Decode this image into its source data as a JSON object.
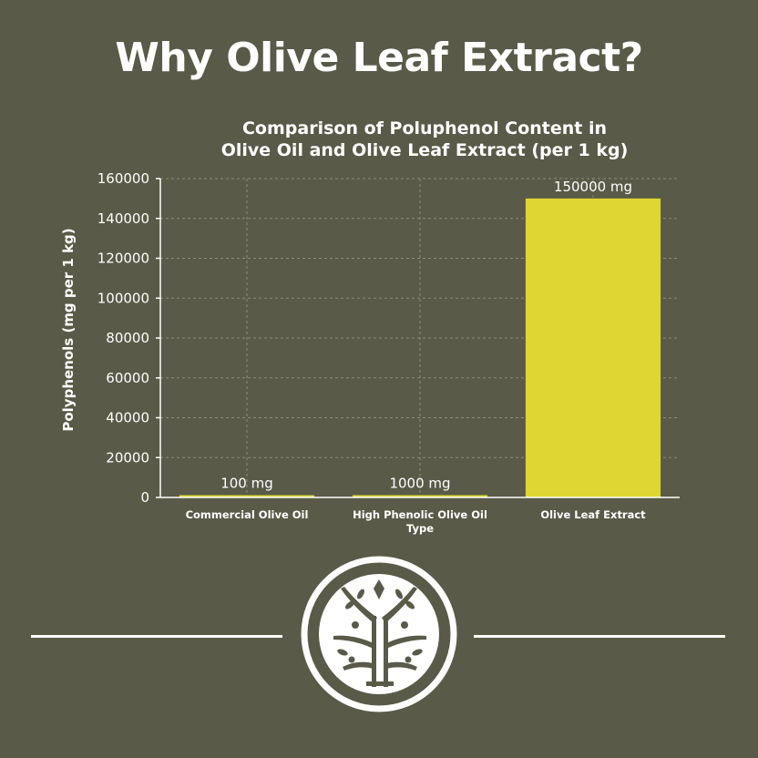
{
  "headline": "Why Olive Leaf Extract?",
  "colors": {
    "background": "#595a48",
    "bar": "#dfd633",
    "text": "#ffffff"
  },
  "logo": {
    "icon": "olive-tree-logo-icon"
  },
  "chart_data": {
    "type": "bar",
    "title_lines": [
      "Comparison of Poluphenol Content in",
      "Olive Oil and Olive Leaf Extract (per 1 kg)"
    ],
    "ylabel": "Polyphenols (mg per 1 kg)",
    "xlabel": "",
    "categories": [
      "Commercial Olive Oil",
      "High Phenolic Olive Oil Type",
      "Olive Leaf Extract"
    ],
    "values": [
      100,
      1000,
      150000
    ],
    "data_labels": [
      "100 mg",
      "1000 mg",
      "150000 mg"
    ],
    "ylim": [
      0,
      160000
    ],
    "yticks": [
      0,
      20000,
      40000,
      60000,
      80000,
      100000,
      120000,
      140000,
      160000
    ],
    "grid": true,
    "legend": "none"
  }
}
